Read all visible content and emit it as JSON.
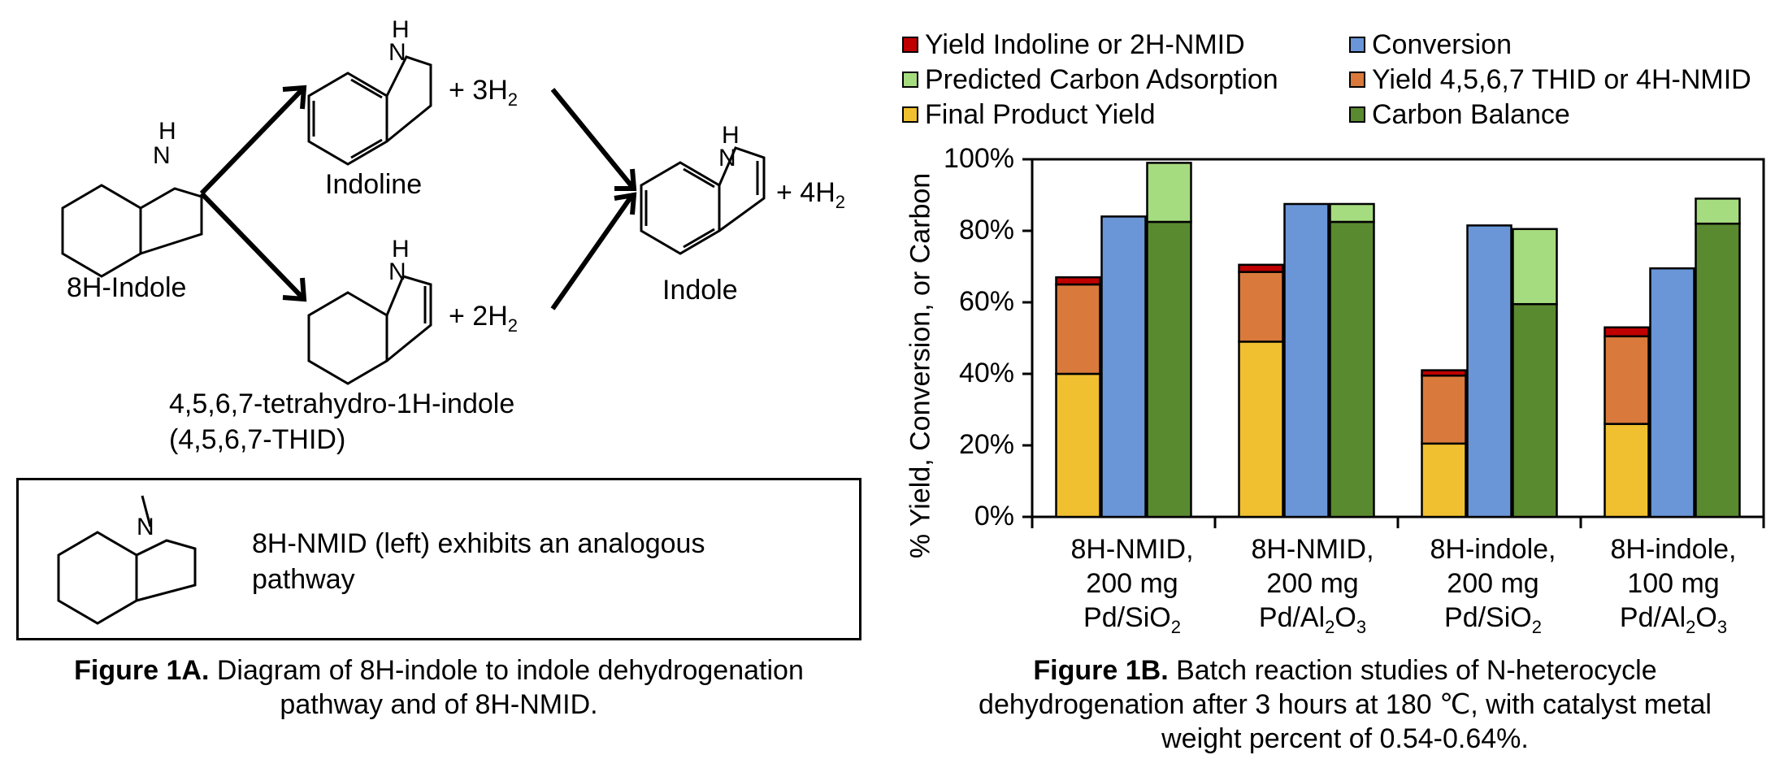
{
  "left_panel": {
    "molecules": {
      "start": {
        "name": "8H-Indole",
        "nh": "H",
        "n": "N"
      },
      "indoline": {
        "name": "Indoline",
        "nh": "H",
        "n": "N",
        "h2": "+ 3H",
        "h2_sub": "2"
      },
      "thid": {
        "name_line1": "4,5,6,7-tetrahydro-1H-indole",
        "name_line2": "(4,5,6,7-THID)",
        "nh": "H",
        "n": "N",
        "h2": "+ 2H",
        "h2_sub": "2"
      },
      "indole": {
        "name": "Indole",
        "nh": "H",
        "n": "N",
        "h2": "+ 4H",
        "h2_sub": "2"
      }
    },
    "box": {
      "n": "N",
      "text_line1": "8H-NMID (left) exhibits an analogous",
      "text_line2": "pathway"
    },
    "caption": {
      "bold": "Figure 1A.",
      "rest_line1": " Diagram of 8H-indole to indole dehydrogenation",
      "line2": "pathway and of 8H-NMID."
    }
  },
  "chart_data": {
    "type": "bar",
    "categories": [
      [
        "8H-NMID,",
        "200 mg",
        "Pd/SiO",
        "2",
        ""
      ],
      [
        "8H-NMID,",
        "200 mg",
        "Pd/Al",
        "2",
        "O",
        "3"
      ],
      [
        "8H-indole,",
        "200 mg",
        "Pd/SiO",
        "2",
        ""
      ],
      [
        "8H-indole,",
        "100 mg",
        "Pd/Al",
        "2",
        "O",
        "3"
      ]
    ],
    "ylabel": "% Yield, Conversion, or Carbon",
    "ylim": [
      0,
      100
    ],
    "yticks": [
      "0%",
      "20%",
      "40%",
      "60%",
      "80%",
      "100%"
    ],
    "ytick_values": [
      0,
      20,
      40,
      60,
      80,
      100
    ],
    "legend": [
      {
        "label": "Yield Indoline or 2H-NMID",
        "color": "#C00000"
      },
      {
        "label": "Conversion",
        "color": "#6A96D8"
      },
      {
        "label": "Predicted Carbon Adsorption",
        "color": "#A6DC80"
      },
      {
        "label": "Yield 4,5,6,7 THID or 4H-NMID",
        "color": "#D97A3C"
      },
      {
        "label": "Final Product Yield",
        "color": "#F0C030"
      },
      {
        "label": "Carbon Balance",
        "color": "#5A8A30"
      }
    ],
    "stack_yield": {
      "final_product": [
        40,
        49,
        20.5,
        26
      ],
      "thid_4h_nmid": [
        25,
        19.5,
        19,
        24.5
      ],
      "indoline_2h_nmid": [
        2,
        2,
        1.5,
        2.5
      ]
    },
    "conversion": [
      84,
      87.5,
      81.5,
      69.5
    ],
    "stack_carbon": {
      "carbon_balance": [
        82.5,
        82.5,
        59.5,
        82
      ],
      "predicted_adsorption": [
        16.5,
        5,
        21,
        7
      ]
    },
    "colors": {
      "final_product": "#F0C030",
      "thid_4h_nmid": "#D97A3C",
      "indoline_2h_nmid": "#C00000",
      "conversion": "#6A96D8",
      "carbon_balance": "#5A8A30",
      "predicted_adsorption": "#A6DC80"
    }
  },
  "right_caption": {
    "bold": "Figure 1B.",
    "rest_line1": " Batch reaction studies of N-heterocycle",
    "line2": "dehydrogenation after 3 hours at 180 ℃, with catalyst metal",
    "line3": "weight percent of 0.54-0.64%."
  }
}
